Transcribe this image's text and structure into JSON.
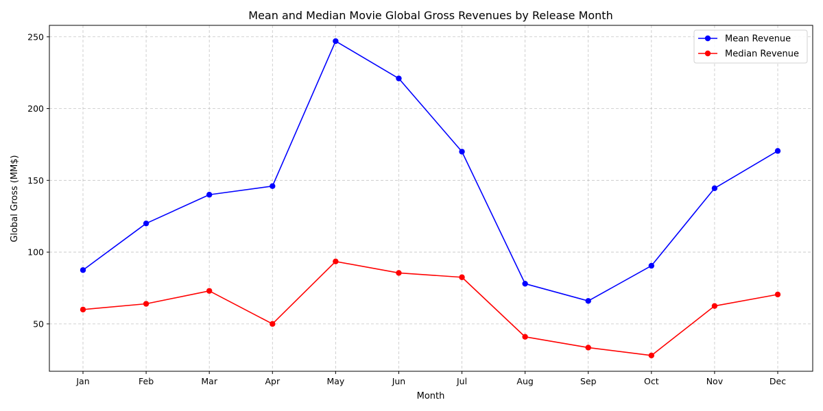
{
  "chart_data": {
    "type": "line",
    "title": "Mean and Median Movie Global Gross Revenues by Release Month",
    "xlabel": "Month",
    "ylabel": "Global Gross (MM$)",
    "categories": [
      "Jan",
      "Feb",
      "Mar",
      "Apr",
      "May",
      "Jun",
      "Jul",
      "Aug",
      "Sep",
      "Oct",
      "Nov",
      "Dec"
    ],
    "y_ticks": [
      50,
      100,
      150,
      200,
      250
    ],
    "ylim": [
      17,
      258
    ],
    "grid": true,
    "legend_position": "top-right",
    "series": [
      {
        "name": "Mean Revenue",
        "color": "#0000ff",
        "values": [
          87.5,
          120,
          140,
          146,
          247,
          221,
          170,
          78,
          66,
          90.5,
          144.5,
          170.5
        ]
      },
      {
        "name": "Median Revenue",
        "color": "#ff0000",
        "values": [
          60,
          64,
          73,
          50,
          93.5,
          85.5,
          82.5,
          41,
          33.5,
          28,
          62.5,
          70.5
        ]
      }
    ]
  }
}
